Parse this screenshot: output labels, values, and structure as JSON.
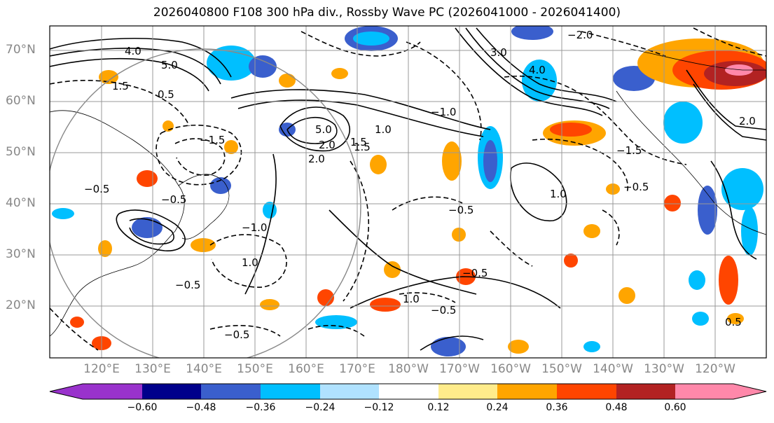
{
  "title": "2026040800 F108 300 hPa div., Rossby Wave PC (2026041000 - 2026041400)",
  "lat_labels": [
    "70°N",
    "60°N",
    "50°N",
    "40°N",
    "30°N",
    "20°N"
  ],
  "lon_labels": [
    "120°E",
    "130°E",
    "140°E",
    "150°E",
    "160°E",
    "170°E",
    "180°W",
    "170°W",
    "160°W",
    "150°W",
    "140°W",
    "130°W",
    "120°W"
  ],
  "colorbar": {
    "ticks": [
      "−0.60",
      "−0.48",
      "−0.36",
      "−0.24",
      "−0.12",
      "0.12",
      "0.24",
      "0.36",
      "0.48",
      "0.60"
    ],
    "colors": [
      "#9932cc",
      "#00008b",
      "#3a5fcd",
      "#00bfff",
      "#b0e2ff",
      "#ffffff",
      "#ffec8b",
      "#ffa500",
      "#ff4500",
      "#b22222",
      "#ff88aa"
    ]
  },
  "contour_labels": [
    "4.0",
    "5.0",
    "0.5",
    "1.5",
    "2.0",
    "3.0",
    "4.0",
    "5.0",
    "1.0",
    "1.5",
    "2.0",
    "−2.0",
    "−1.5",
    "−1.0",
    "−0.5",
    "−0.5",
    "−0.5",
    "−1.0",
    "−1.5",
    "−0.5",
    "−0.5",
    "1.0",
    "1.0",
    "1.5",
    "2.0",
    "−0.5",
    "−0.5",
    "1.0",
    "−0.5",
    "0.5"
  ]
}
